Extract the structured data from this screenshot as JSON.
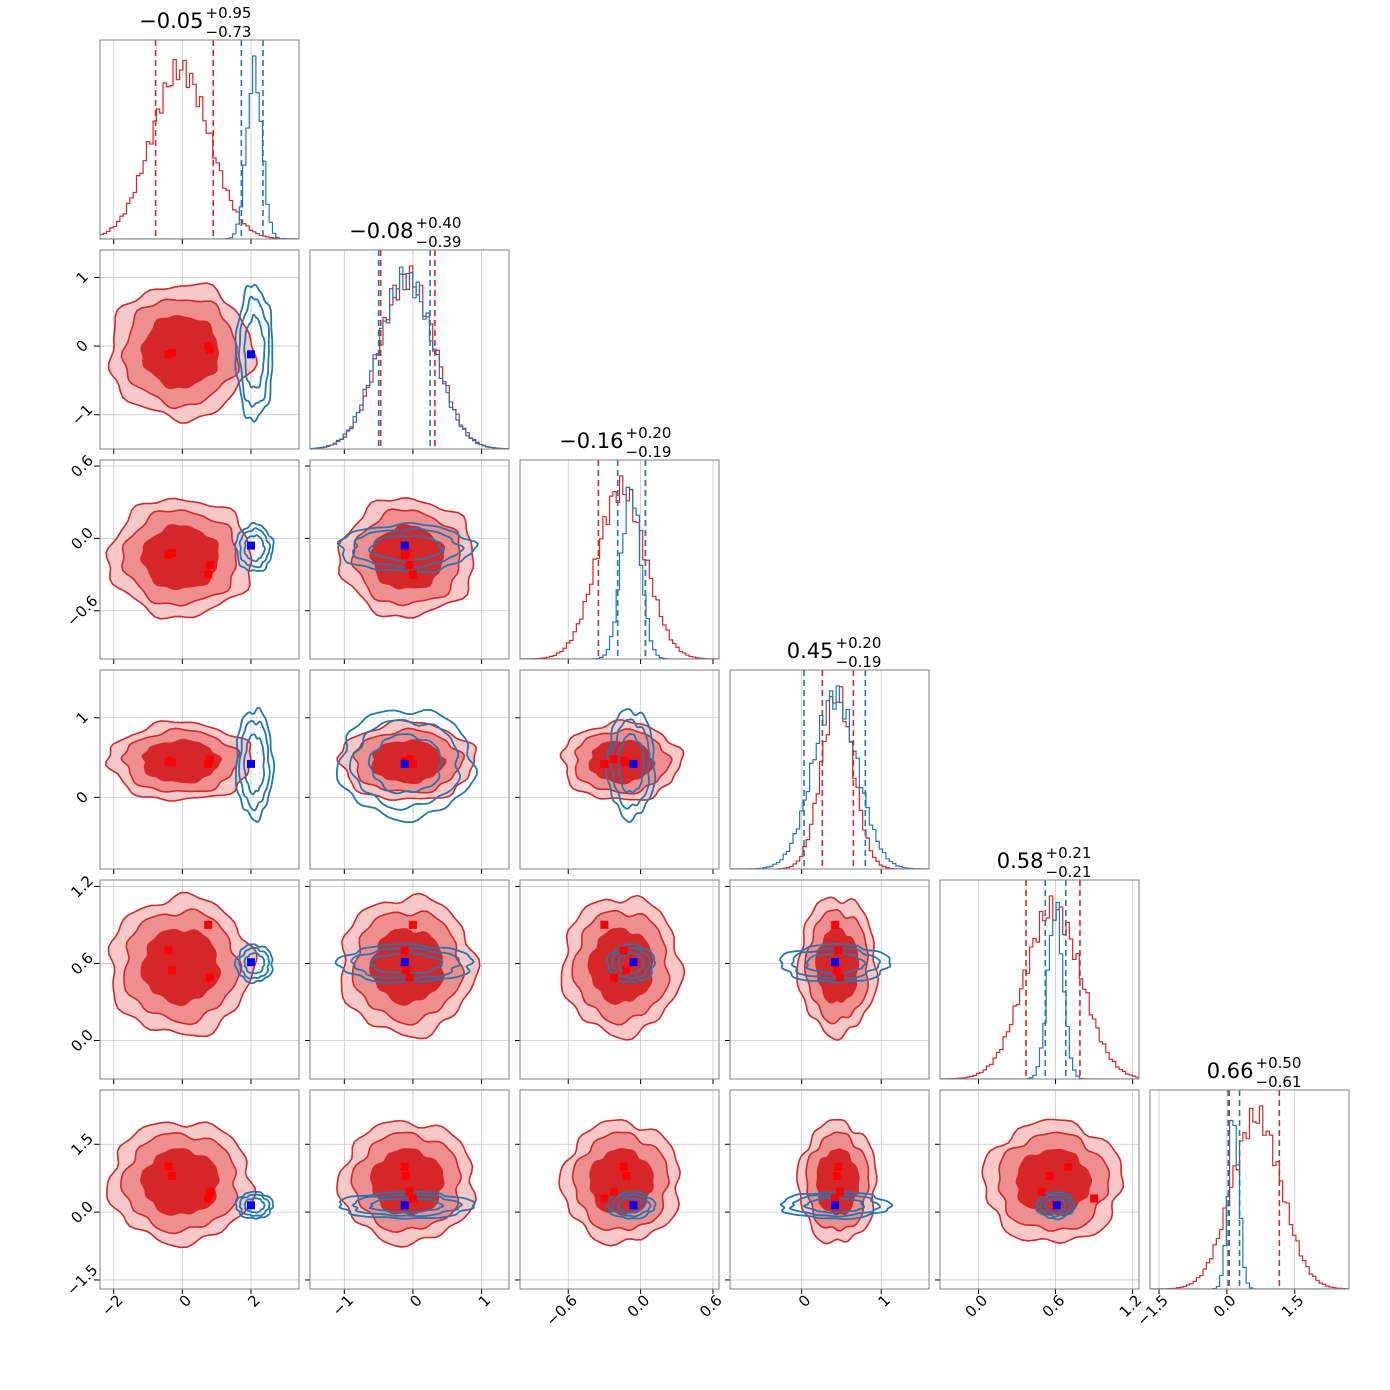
{
  "chart_data": {
    "type": "corner",
    "n_params": 6,
    "series": [
      {
        "color": "#d62728",
        "marker_color": "#ff0000",
        "role": "filled-contours"
      },
      {
        "color": "#1f77b4",
        "marker_color": "#0000ff",
        "role": "line-contours"
      }
    ],
    "titles": [
      {
        "median": "−0.05",
        "plus": "+0.95",
        "minus": "−0.73"
      },
      {
        "median": "−0.08",
        "plus": "+0.40",
        "minus": "−0.39"
      },
      {
        "median": "−0.16",
        "plus": "+0.20",
        "minus": "−0.19"
      },
      {
        "median": "0.45",
        "plus": "+0.20",
        "minus": "−0.19"
      },
      {
        "median": "0.58",
        "plus": "+0.21",
        "minus": "−0.21"
      },
      {
        "median": "0.66",
        "plus": "+0.50",
        "minus": "−0.61"
      }
    ],
    "params": [
      {
        "range": [
          -2.4,
          3.4
        ],
        "ticks": [
          -2,
          0,
          2
        ],
        "tick_labels": [
          "−2",
          "0",
          "2"
        ]
      },
      {
        "range": [
          -1.5,
          1.4
        ],
        "ticks": [
          -1,
          0,
          1
        ],
        "tick_labels": [
          "−1",
          "0",
          "1"
        ]
      },
      {
        "range": [
          -1.0,
          0.65
        ],
        "ticks": [
          -0.6,
          0.0,
          0.6
        ],
        "tick_labels": [
          "−0.6",
          "0.0",
          "0.6"
        ]
      },
      {
        "range": [
          -0.9,
          1.6
        ],
        "ticks": [
          0,
          1
        ],
        "tick_labels": [
          "0",
          "1"
        ]
      },
      {
        "range": [
          -0.3,
          1.25
        ],
        "ticks": [
          0.0,
          0.6,
          1.2
        ],
        "tick_labels": [
          "0.0",
          "0.6",
          "1.2"
        ]
      },
      {
        "range": [
          -1.7,
          2.7
        ],
        "ticks": [
          -1.5,
          0.0,
          1.5
        ],
        "tick_labels": [
          "−1.5",
          "0.0",
          "1.5"
        ]
      }
    ],
    "red": {
      "mean": [
        -0.05,
        -0.08,
        -0.16,
        0.45,
        0.58,
        0.66
      ],
      "sd": [
        0.85,
        0.4,
        0.2,
        0.2,
        0.22,
        0.55
      ],
      "q16": [
        -0.78,
        -0.47,
        -0.35,
        0.26,
        0.37,
        0.05
      ],
      "q84": [
        0.9,
        0.32,
        0.04,
        0.65,
        0.79,
        1.16
      ],
      "markers": [
        [
          -0.3,
          -0.1,
          -0.12,
          0.44,
          0.55,
          0.8
        ],
        [
          -0.4,
          -0.12,
          -0.14,
          0.46,
          0.7,
          1.0
        ],
        [
          0.8,
          -0.05,
          -0.22,
          0.48,
          0.49,
          0.45
        ],
        [
          0.75,
          0.0,
          -0.3,
          0.42,
          0.9,
          0.3
        ]
      ]
    },
    "blue": {
      "mean": [
        2.1,
        -0.1,
        -0.08,
        0.42,
        0.6,
        0.15
      ],
      "sd": [
        0.22,
        0.4,
        0.08,
        0.28,
        0.06,
        0.12
      ],
      "q16": [
        1.72,
        -0.5,
        -0.19,
        0.03,
        0.52,
        0.03
      ],
      "q84": [
        2.35,
        0.25,
        0.04,
        0.8,
        0.68,
        0.28
      ],
      "marker": [
        2.0,
        -0.12,
        -0.06,
        0.42,
        0.61,
        0.15
      ]
    }
  }
}
